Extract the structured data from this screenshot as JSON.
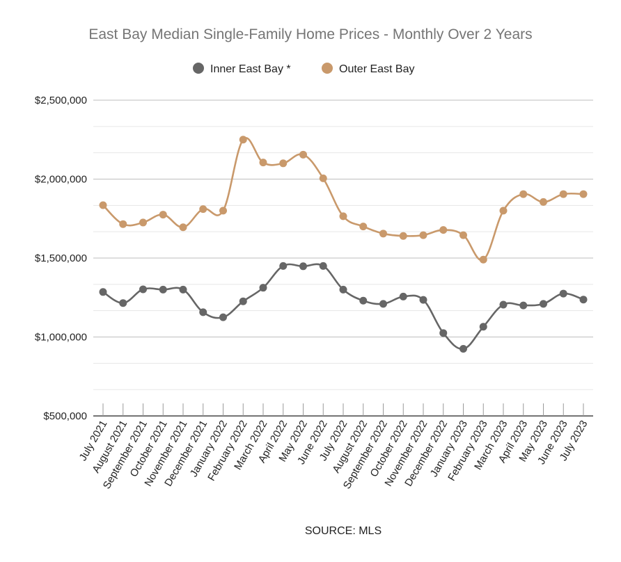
{
  "chart_data": {
    "type": "line",
    "title": "East Bay Median Single-Family Home Prices - Monthly Over 2 Years",
    "source": "SOURCE: MLS",
    "xlabel": "",
    "ylabel": "",
    "ylim": [
      500000,
      2500000
    ],
    "grid": true,
    "legend_position": "top-center",
    "y_ticks": [
      {
        "value": 500000,
        "label": "$500,000"
      },
      {
        "value": 1000000,
        "label": "$1,000,000"
      },
      {
        "value": 1500000,
        "label": "$1,500,000"
      },
      {
        "value": 2000000,
        "label": "$2,000,000"
      },
      {
        "value": 2500000,
        "label": "$2,500,000"
      }
    ],
    "categories": [
      "July 2021",
      "August 2021",
      "September 2021",
      "October 2021",
      "November 2021",
      "December 2021",
      "January 2022",
      "February 2022",
      "March 2022",
      "April 2022",
      "May 2022",
      "June 2022",
      "July 2022",
      "August 2022",
      "September 2022",
      "October 2022",
      "November 2022",
      "December 2022",
      "January 2023",
      "February 2023",
      "March 2023",
      "April 2023",
      "May 2023",
      "June 2023",
      "July 2023"
    ],
    "series": [
      {
        "name": "Inner East Bay *",
        "color": "#666666",
        "values": [
          1285000,
          1215000,
          1302000,
          1300000,
          1300000,
          1157000,
          1125000,
          1226000,
          1312000,
          1450000,
          1448000,
          1450000,
          1300000,
          1230000,
          1210000,
          1256000,
          1235000,
          1025000,
          925000,
          1065000,
          1205000,
          1200000,
          1210000,
          1275000,
          1237000
        ]
      },
      {
        "name": "Outer East Bay",
        "color": "#c9996b",
        "values": [
          1835000,
          1715000,
          1725000,
          1775000,
          1695000,
          1810000,
          1800000,
          2250000,
          2105000,
          2100000,
          2155000,
          2005000,
          1765000,
          1700000,
          1655000,
          1640000,
          1645000,
          1678000,
          1645000,
          1490000,
          1800000,
          1905000,
          1855000,
          1905000,
          1905000
        ]
      }
    ]
  }
}
